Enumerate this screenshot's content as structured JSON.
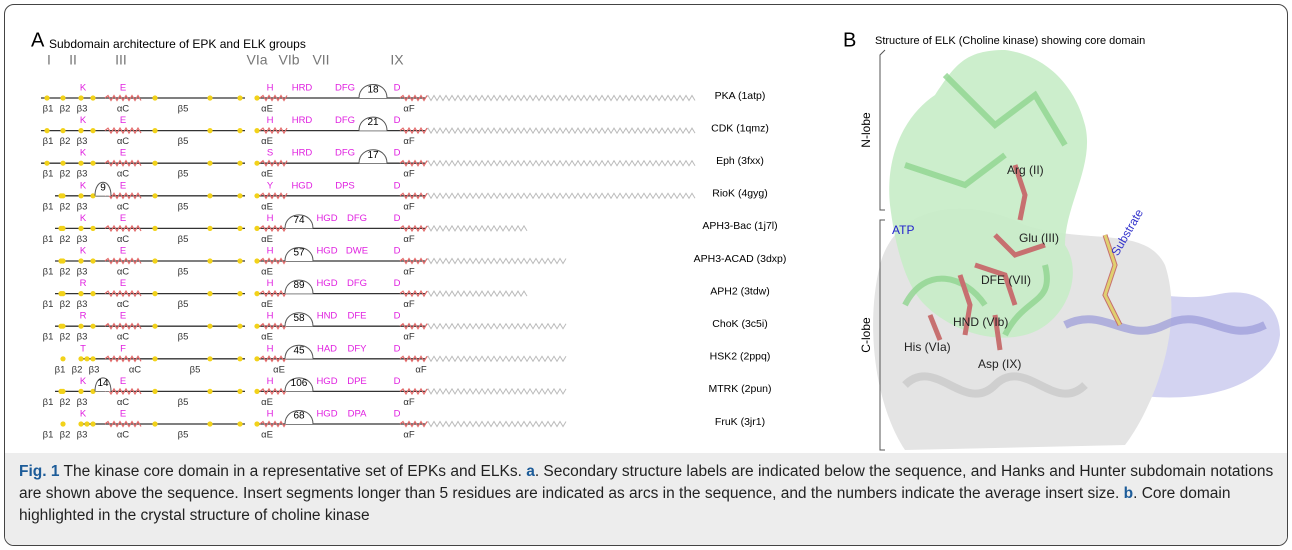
{
  "panel_a": {
    "label": "A",
    "title": "Subdomain architecture of EPK and ELK groups",
    "subdomains": [
      "I",
      "II",
      "III",
      "VIa",
      "VIb",
      "VII",
      "IX"
    ],
    "ss_labels": [
      "β1",
      "β2",
      "β3",
      "αC",
      "β5",
      "αE",
      "αF"
    ],
    "rows": [
      {
        "name": "PKA (1atp)",
        "residues": [
          "K",
          "E",
          "H",
          "HRD",
          "DFG",
          "D"
        ],
        "inserts": [
          18
        ]
      },
      {
        "name": "CDK (1qmz)",
        "residues": [
          "K",
          "E",
          "H",
          "HRD",
          "DFG",
          "D"
        ],
        "inserts": [
          21
        ]
      },
      {
        "name": "Eph (3fxx)",
        "residues": [
          "K",
          "E",
          "S",
          "HRD",
          "DFG",
          "D"
        ],
        "inserts": [
          17
        ]
      },
      {
        "name": "RioK (4gyg)",
        "residues": [
          "K",
          "E",
          "Y",
          "HGD",
          "DPS",
          "D"
        ],
        "inserts": [
          9
        ]
      },
      {
        "name": "APH3-Bac (1j7l)",
        "residues": [
          "K",
          "E",
          "H",
          "HGD",
          "DFG",
          "D"
        ],
        "inserts": [
          74
        ]
      },
      {
        "name": "APH3-ACAD (3dxp)",
        "residues": [
          "K",
          "E",
          "H",
          "HGD",
          "DWE",
          "D"
        ],
        "inserts": [
          57
        ]
      },
      {
        "name": "APH2 (3tdw)",
        "residues": [
          "R",
          "E",
          "H",
          "HGD",
          "DFG",
          "D"
        ],
        "inserts": [
          89
        ]
      },
      {
        "name": "ChoK (3c5i)",
        "residues": [
          "R",
          "E",
          "H",
          "HND",
          "DFE",
          "D"
        ],
        "inserts": [
          58
        ]
      },
      {
        "name": "HSK2 (2ppq)",
        "residues": [
          "T",
          "F",
          "H",
          "HAD",
          "DFY",
          "D"
        ],
        "inserts": [
          45
        ]
      },
      {
        "name": "MTRK (2pun)",
        "residues": [
          "K",
          "E",
          "H",
          "HGD",
          "DPE",
          "D"
        ],
        "inserts": [
          14,
          106
        ]
      },
      {
        "name": "FruK (3jr1)",
        "residues": [
          "K",
          "E",
          "H",
          "HGD",
          "DPA",
          "D"
        ],
        "inserts": [
          68
        ]
      }
    ]
  },
  "panel_b": {
    "label": "B",
    "title": "Structure of ELK (Choline kinase) showing core domain",
    "lobes": [
      "N-lobe",
      "C-lobe"
    ],
    "labels": [
      "Arg (II)",
      "ATP",
      "Glu (III)",
      "DFE (VII)",
      "Substrate",
      "HND (VIb)",
      "His (VIa)",
      "Asp (IX)"
    ]
  },
  "caption": [
    {
      "text": "Fig. 1",
      "bold": true
    },
    {
      "text": " The kinase core domain in a representative set of EPKs and ELKs. ",
      "bold": false
    },
    {
      "text": "a",
      "bold": true
    },
    {
      "text": ". Secondary structure labels are indicated below the sequence, and Hanks and Hunter subdomain notations are shown above the sequence. Insert segments longer than 5 residues are indicated as arcs in the sequence, and the numbers indicate the average insert size. ",
      "bold": false
    },
    {
      "text": "b",
      "bold": true
    },
    {
      "text": ". Core domain highlighted in the crystal structure of choline kinase",
      "bold": false
    }
  ]
}
